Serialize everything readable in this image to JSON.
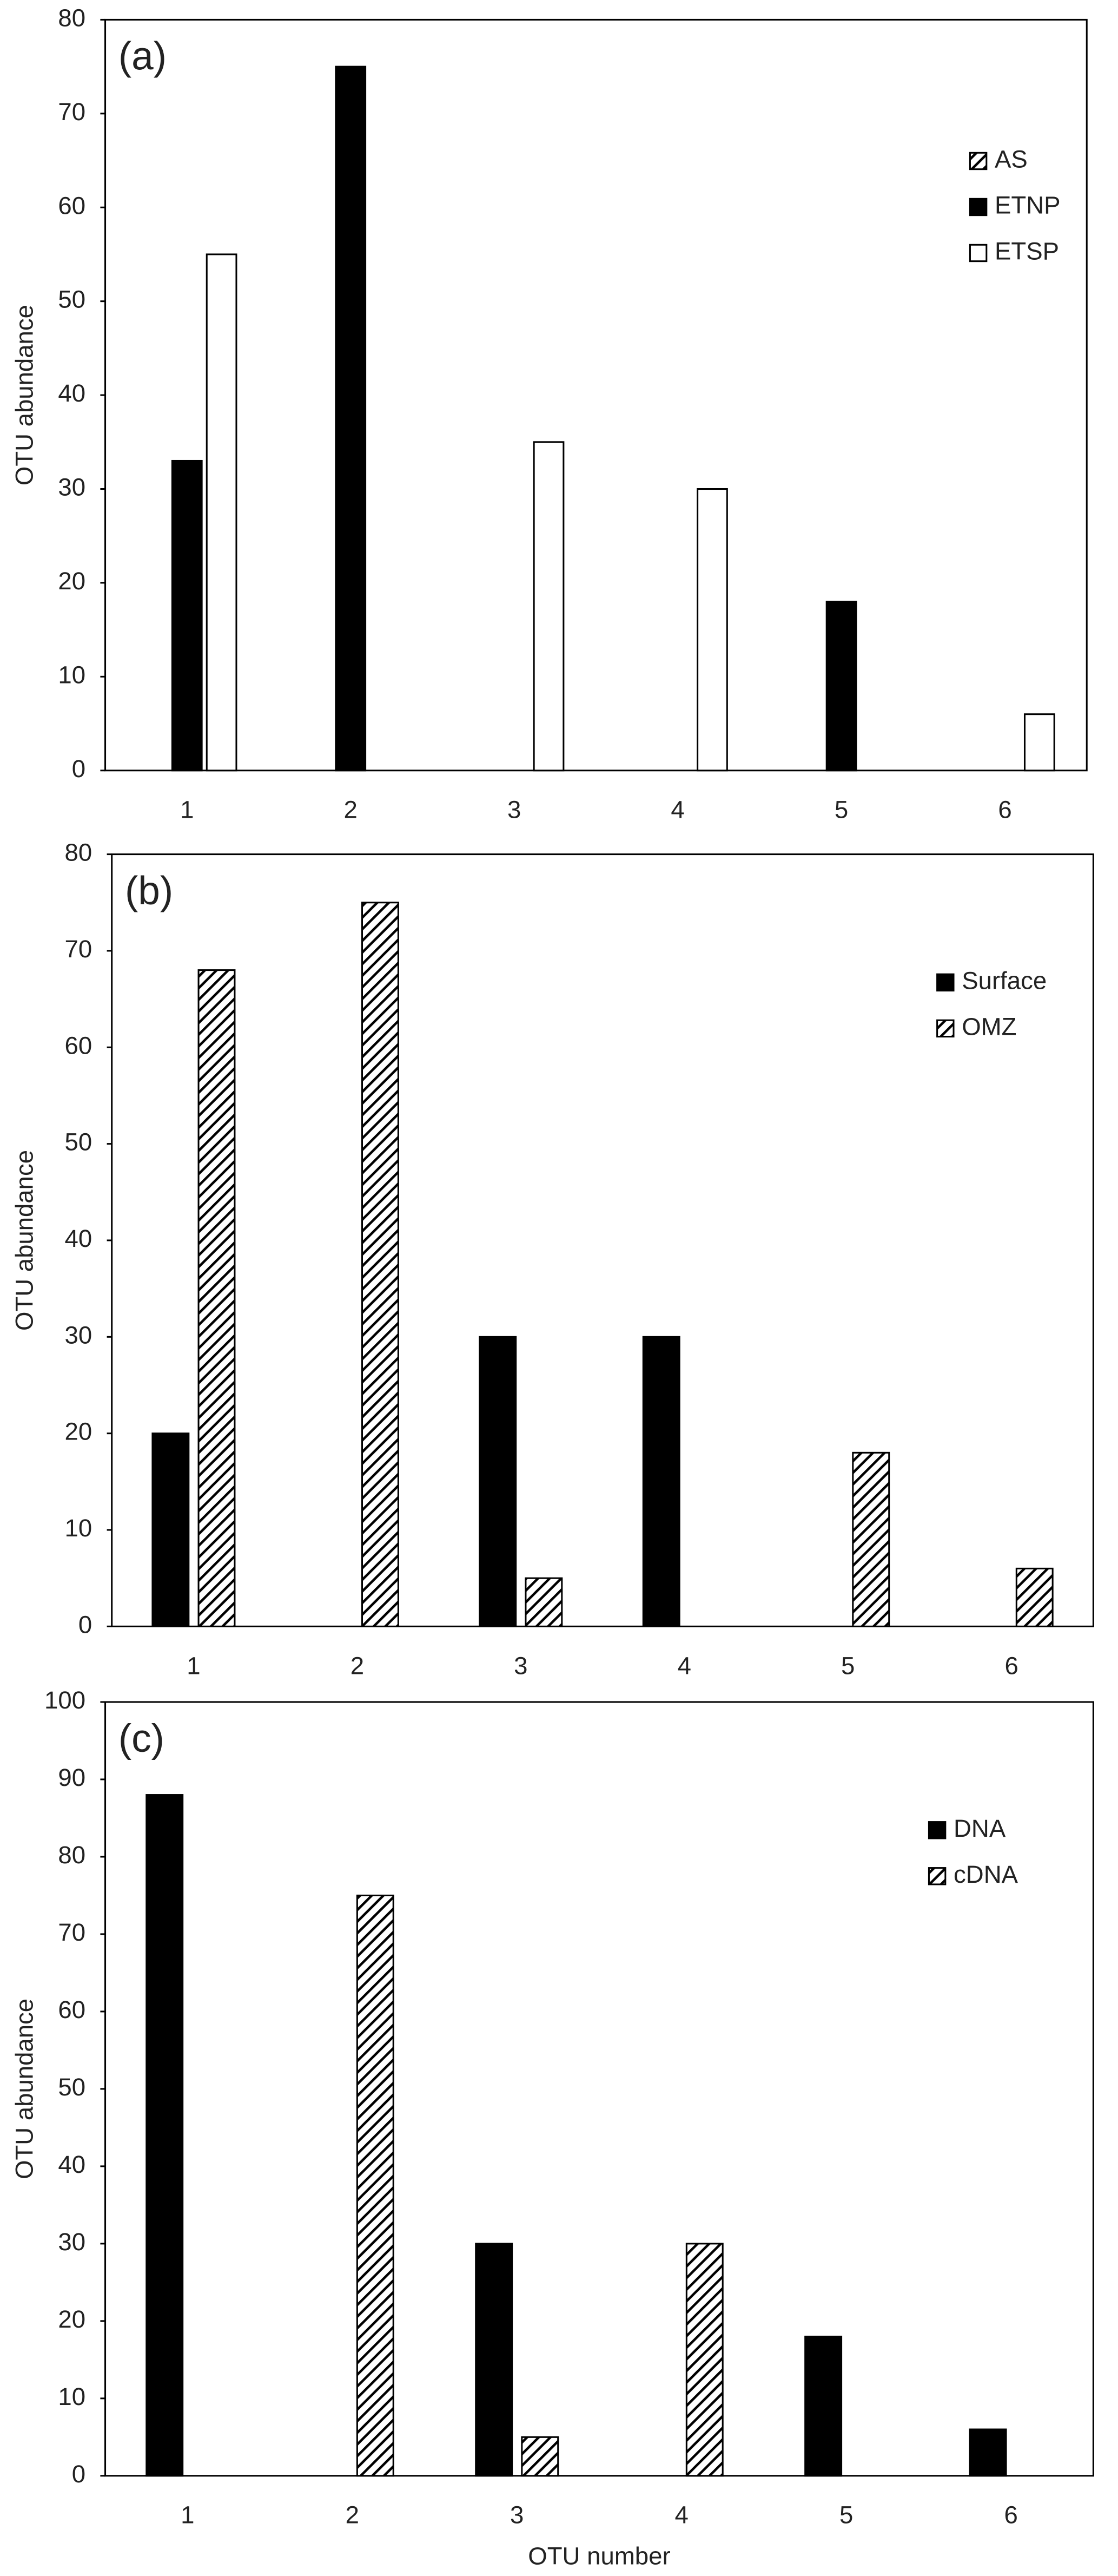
{
  "chart_data": [
    {
      "type": "bar",
      "label": "(a)",
      "ylabel": "OTU abundance",
      "categories": [
        "1",
        "2",
        "3",
        "4",
        "5",
        "6"
      ],
      "series": [
        {
          "name": "AS",
          "color": "#000000",
          "pattern": "hatch",
          "values": [
            0,
            0,
            0,
            0,
            0,
            0
          ]
        },
        {
          "name": "ETNP",
          "color": "#000000",
          "pattern": "solid",
          "values": [
            33,
            75,
            0,
            0,
            18,
            0
          ]
        },
        {
          "name": "ETSP",
          "color": "#ffffff",
          "pattern": "solid",
          "values": [
            55,
            0,
            35,
            30,
            0,
            6
          ]
        }
      ],
      "ylim": [
        0,
        80
      ],
      "yticks": [
        0,
        10,
        20,
        30,
        40,
        50,
        60,
        70,
        80
      ]
    },
    {
      "type": "bar",
      "label": "(b)",
      "ylabel": "OTU abundance",
      "categories": [
        "1",
        "2",
        "3",
        "4",
        "5",
        "6"
      ],
      "series": [
        {
          "name": "Surface",
          "color": "#000000",
          "pattern": "solid",
          "values": [
            20,
            0,
            30,
            30,
            0,
            0
          ]
        },
        {
          "name": "OMZ",
          "color": "#000000",
          "pattern": "hatch",
          "values": [
            68,
            75,
            5,
            0,
            18,
            6
          ]
        }
      ],
      "ylim": [
        0,
        80
      ],
      "yticks": [
        0,
        10,
        20,
        30,
        40,
        50,
        60,
        70,
        80
      ]
    },
    {
      "type": "bar",
      "label": "(c)",
      "ylabel": "OTU abundance",
      "xlabel": "OTU number",
      "categories": [
        "1",
        "2",
        "3",
        "4",
        "5",
        "6"
      ],
      "series": [
        {
          "name": "DNA",
          "color": "#000000",
          "pattern": "solid",
          "values": [
            88,
            0,
            30,
            0,
            18,
            6
          ]
        },
        {
          "name": "cDNA",
          "color": "#000000",
          "pattern": "hatch",
          "values": [
            0,
            75,
            5,
            30,
            0,
            0
          ]
        }
      ],
      "ylim": [
        0,
        100
      ],
      "yticks": [
        0,
        10,
        20,
        30,
        40,
        50,
        60,
        70,
        80,
        90,
        100
      ]
    }
  ]
}
